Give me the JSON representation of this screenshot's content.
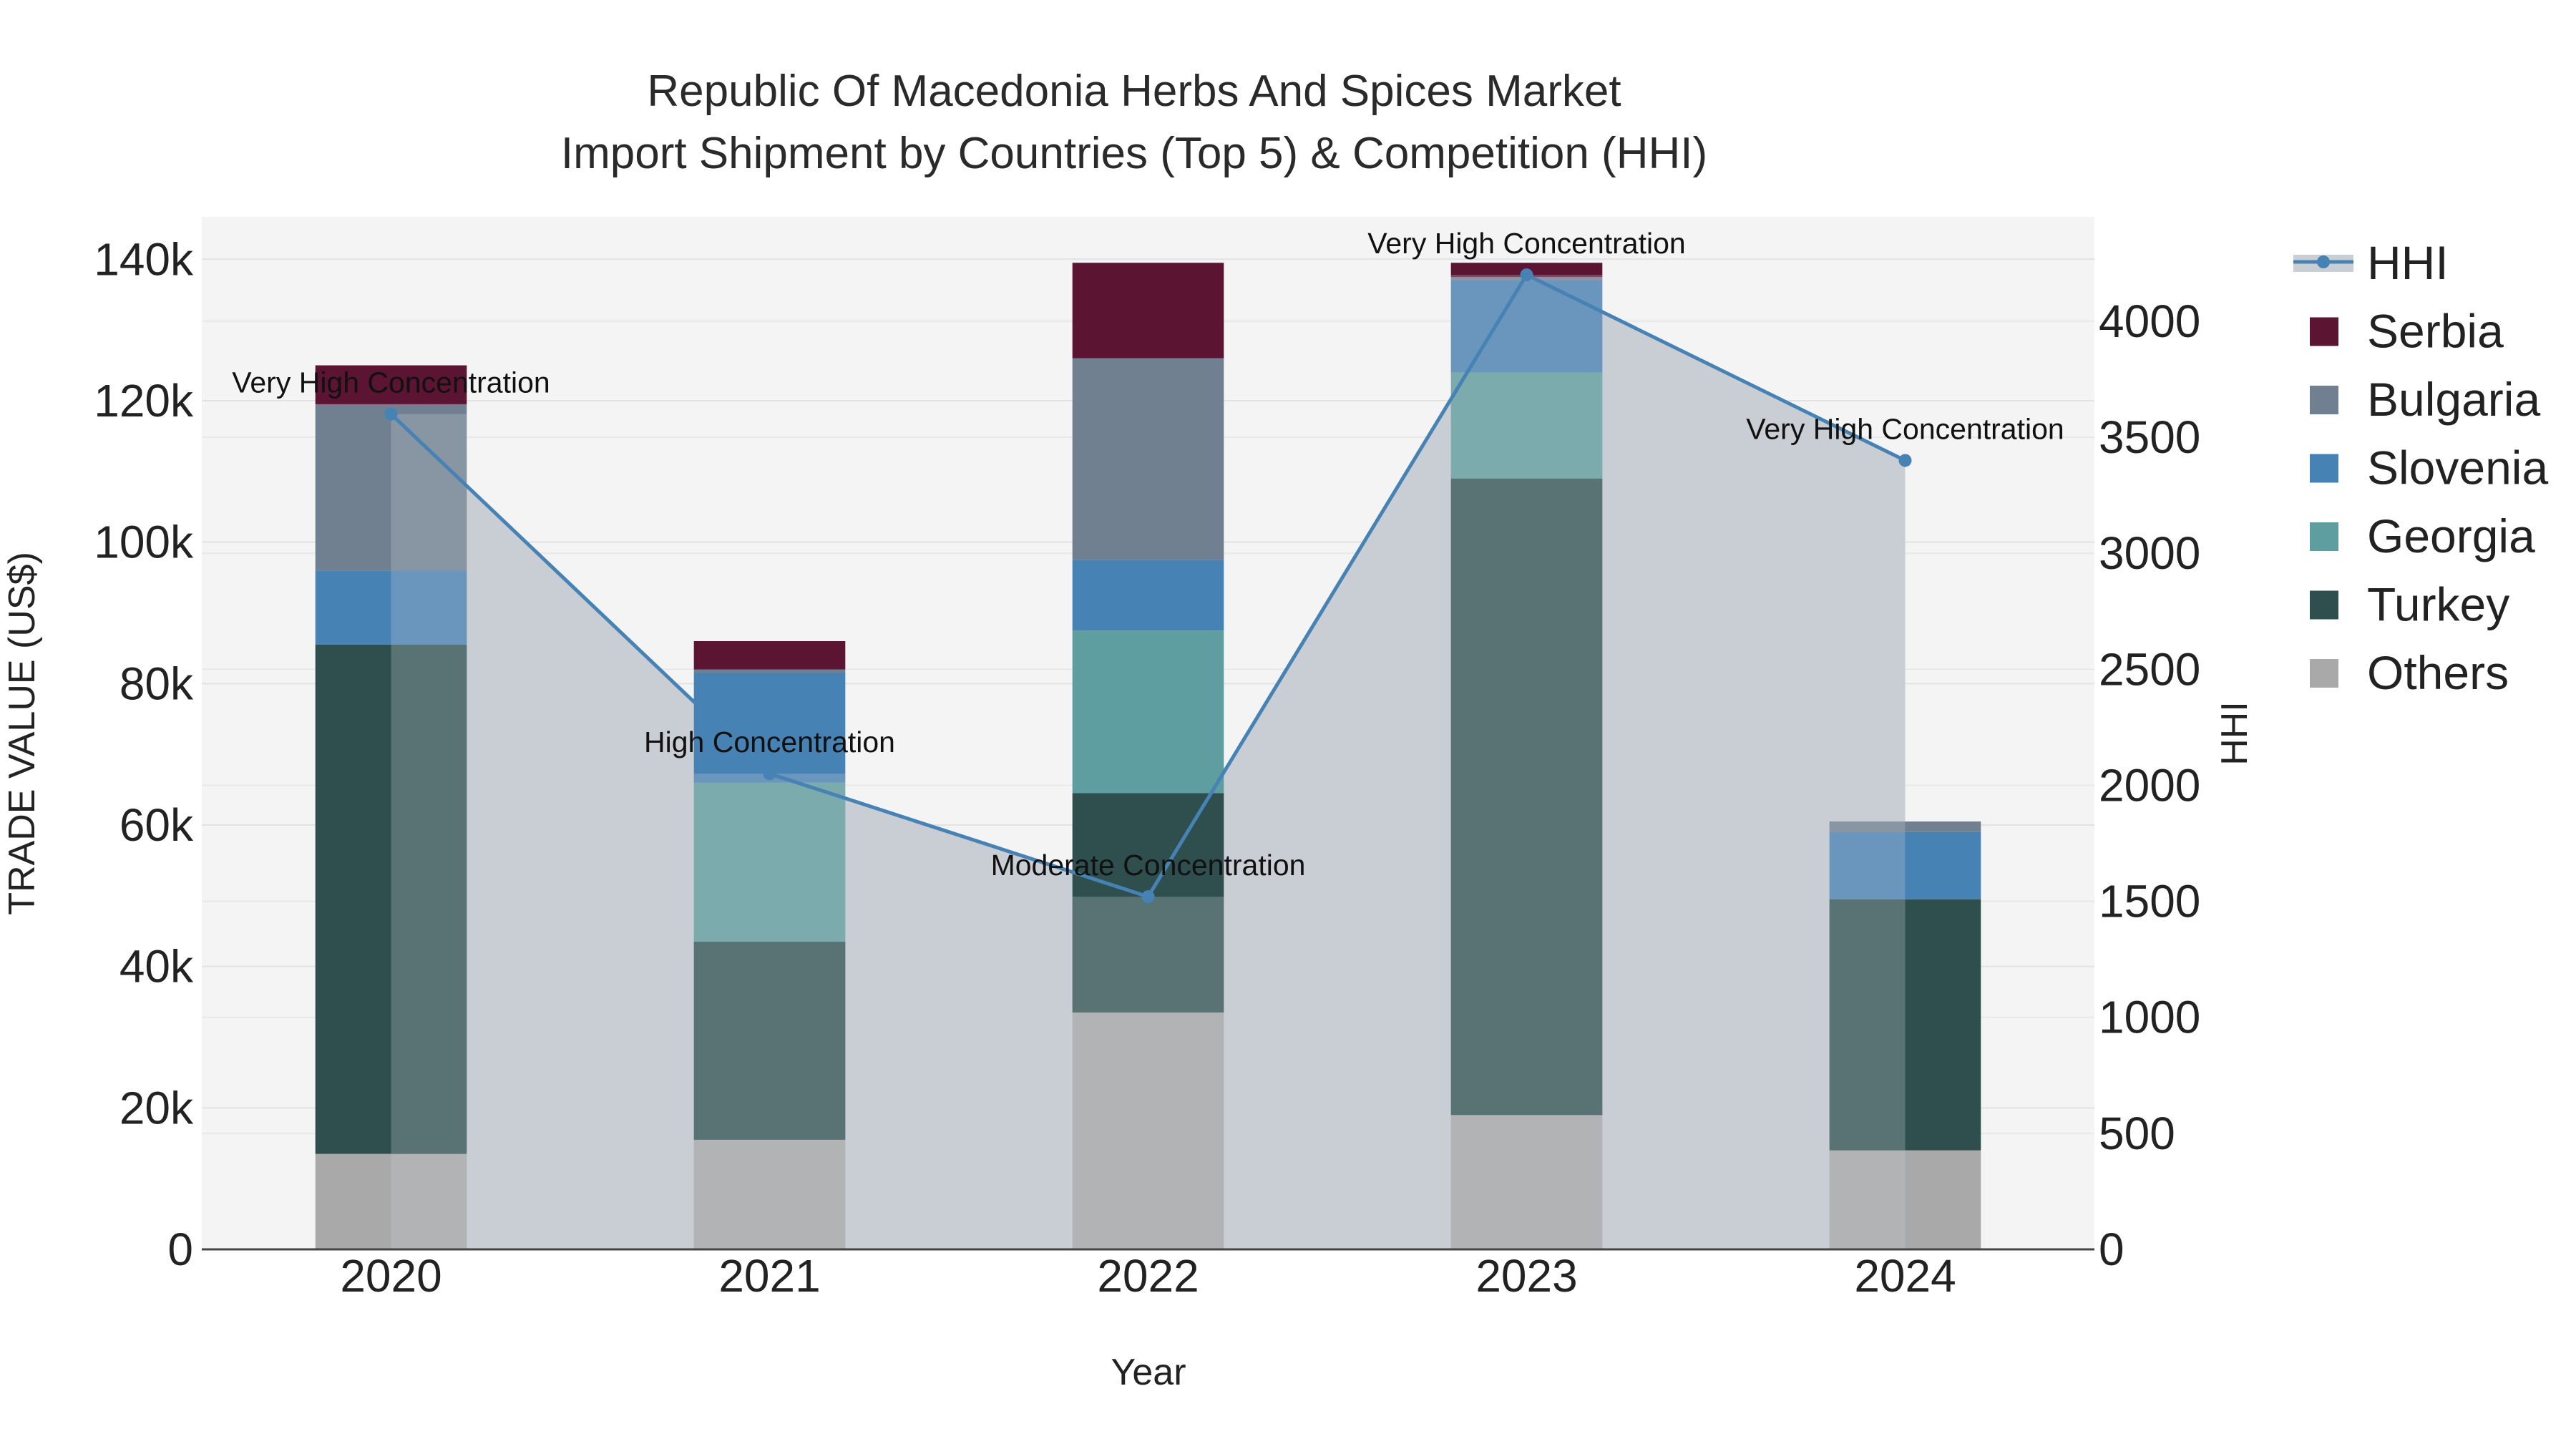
{
  "chart_data": {
    "type": "bar",
    "title_line1": "Republic Of Macedonia Herbs And Spices Market",
    "title_line2": "Import Shipment by Countries (Top 5) & Competition (HHI)",
    "xlabel": "Year",
    "ylabel": "TRADE VALUE (US$)",
    "y2label": "HHI",
    "categories": [
      "2020",
      "2021",
      "2022",
      "2023",
      "2024"
    ],
    "ylim": [
      0,
      146000
    ],
    "y_ticks": [
      0,
      20000,
      40000,
      60000,
      80000,
      100000,
      120000,
      140000
    ],
    "y_tick_labels": [
      "0",
      "20k",
      "40k",
      "60k",
      "80k",
      "100k",
      "120k",
      "140k"
    ],
    "y2lim": [
      0,
      4450
    ],
    "y2_ticks": [
      0,
      500,
      1000,
      1500,
      2000,
      2500,
      3000,
      3500,
      4000
    ],
    "y2_tick_labels": [
      "0",
      "500",
      "1000",
      "1500",
      "2000",
      "2500",
      "3000",
      "3500",
      "4000"
    ],
    "series": [
      {
        "name": "Others",
        "color": "#a9a9a9",
        "values": [
          13500,
          15500,
          33500,
          19000,
          14000
        ]
      },
      {
        "name": "Turkey",
        "color": "#2f4f4f",
        "values": [
          72000,
          28000,
          31000,
          90000,
          35500
        ]
      },
      {
        "name": "Georgia",
        "color": "#5f9ea0",
        "values": [
          0,
          22500,
          23000,
          15000,
          0
        ]
      },
      {
        "name": "Slovenia",
        "color": "#4682b4",
        "values": [
          10500,
          15500,
          10000,
          13000,
          9500
        ]
      },
      {
        "name": "Bulgaria",
        "color": "#708090",
        "values": [
          23500,
          500,
          28500,
          500,
          1500
        ]
      },
      {
        "name": "Serbia",
        "color": "#5c1433",
        "values": [
          5500,
          4000,
          13500,
          2000,
          0
        ]
      }
    ],
    "hhi": {
      "name": "HHI",
      "color": "#4682b4",
      "values": [
        3600,
        2050,
        1520,
        4200,
        3400
      ],
      "labels": [
        "Very High Concentration",
        "High Concentration",
        "Moderate Concentration",
        "Very High Concentration",
        "Very High Concentration"
      ]
    },
    "legend": [
      "HHI",
      "Serbia",
      "Bulgaria",
      "Slovenia",
      "Georgia",
      "Turkey",
      "Others"
    ]
  }
}
